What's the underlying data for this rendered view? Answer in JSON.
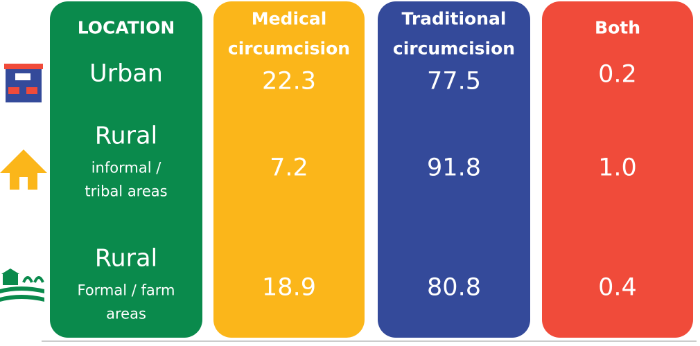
{
  "header": {
    "columns": [
      {
        "lines": [
          "LOCATION"
        ],
        "color": "#0a8a4c"
      },
      {
        "lines": [
          "Medical",
          "circumcision"
        ],
        "color": "#fbb61a"
      },
      {
        "lines": [
          "Traditional",
          "circumcision"
        ],
        "color": "#344a9a"
      },
      {
        "lines": [
          "Both"
        ],
        "color": "#f04b3a"
      }
    ]
  },
  "table": {
    "rows": [
      {
        "location": {
          "name": "Urban",
          "detail": []
        },
        "values": [
          "22.3",
          "77.5",
          "0.2"
        ]
      },
      {
        "location": {
          "name": "Rural",
          "detail": [
            "informal /",
            "tribal areas"
          ]
        },
        "values": [
          "7.2",
          "91.8",
          "1.0"
        ]
      },
      {
        "location": {
          "name": "Rural",
          "detail": [
            "Formal / farm",
            "areas"
          ]
        },
        "values": [
          "18.9",
          "80.8",
          "0.4"
        ]
      }
    ]
  }
}
